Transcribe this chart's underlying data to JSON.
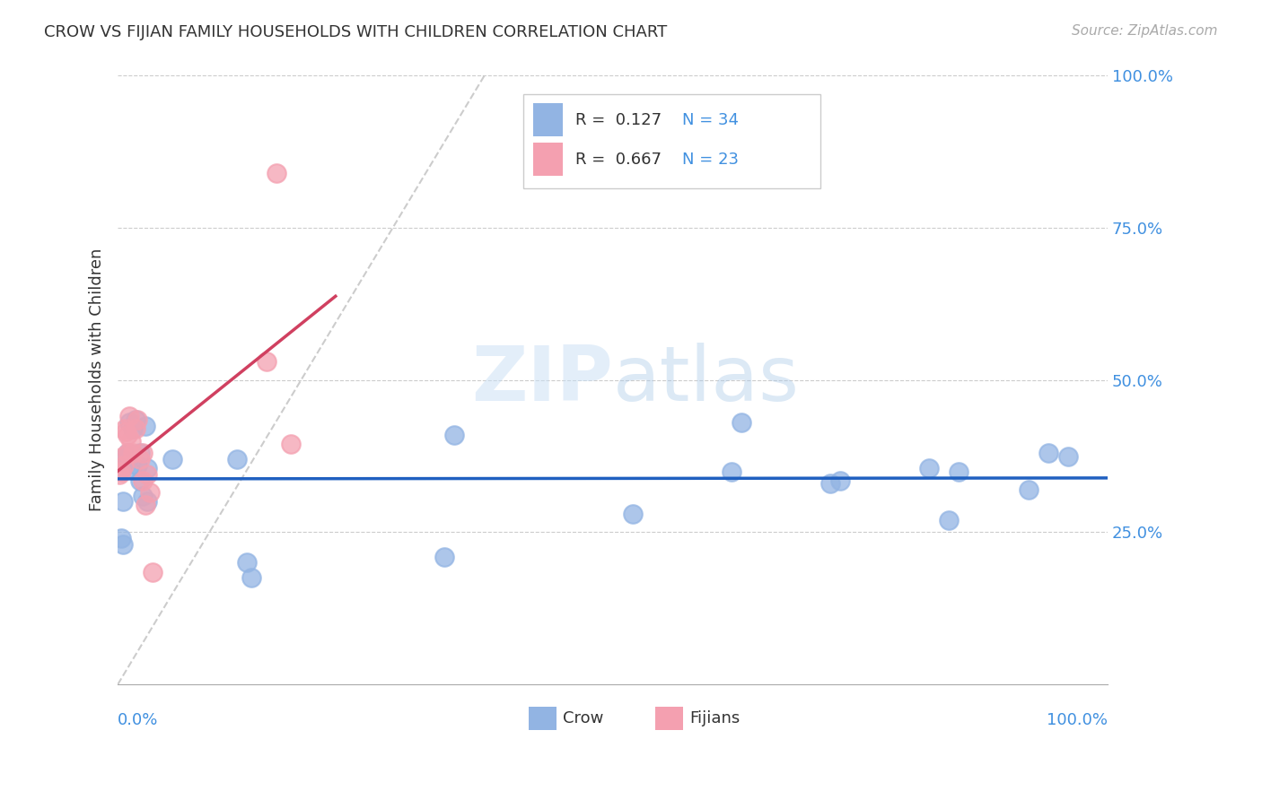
{
  "title": "CROW VS FIJIAN FAMILY HOUSEHOLDS WITH CHILDREN CORRELATION CHART",
  "source": "Source: ZipAtlas.com",
  "ylabel": "Family Households with Children",
  "ytick_labels": [
    "25.0%",
    "50.0%",
    "75.0%",
    "100.0%"
  ],
  "ytick_values": [
    0.25,
    0.5,
    0.75,
    1.0
  ],
  "legend_crow_r": "R =  0.127",
  "legend_crow_n": "N = 34",
  "legend_fijian_r": "R =  0.667",
  "legend_fijian_n": "N = 23",
  "crow_color": "#92b4e3",
  "fijian_color": "#f4a0b0",
  "crow_line_color": "#2060c0",
  "fijian_line_color": "#d04060",
  "diagonal_color": "#c0c0c0",
  "crow_x": [
    0.003,
    0.005,
    0.003,
    0.005,
    0.008,
    0.01,
    0.012,
    0.012,
    0.015,
    0.018,
    0.02,
    0.022,
    0.022,
    0.025,
    0.028,
    0.03,
    0.03,
    0.055,
    0.12,
    0.13,
    0.135,
    0.33,
    0.34,
    0.52,
    0.62,
    0.63,
    0.72,
    0.73,
    0.82,
    0.84,
    0.85,
    0.92,
    0.94,
    0.96
  ],
  "crow_y": [
    0.24,
    0.23,
    0.355,
    0.3,
    0.375,
    0.38,
    0.43,
    0.355,
    0.42,
    0.435,
    0.36,
    0.335,
    0.38,
    0.31,
    0.425,
    0.355,
    0.3,
    0.37,
    0.37,
    0.2,
    0.175,
    0.21,
    0.41,
    0.28,
    0.35,
    0.43,
    0.33,
    0.335,
    0.355,
    0.27,
    0.35,
    0.32,
    0.38,
    0.375
  ],
  "fijian_x": [
    0.002,
    0.003,
    0.005,
    0.006,
    0.007,
    0.008,
    0.01,
    0.01,
    0.012,
    0.013,
    0.015,
    0.018,
    0.02,
    0.022,
    0.025,
    0.025,
    0.028,
    0.03,
    0.032,
    0.035,
    0.15,
    0.16,
    0.175
  ],
  "fijian_y": [
    0.345,
    0.35,
    0.375,
    0.36,
    0.42,
    0.415,
    0.38,
    0.41,
    0.44,
    0.4,
    0.38,
    0.42,
    0.435,
    0.37,
    0.38,
    0.335,
    0.295,
    0.345,
    0.315,
    0.185,
    0.53,
    0.84,
    0.395
  ],
  "background_color": "#ffffff",
  "grid_color": "#cccccc",
  "blue_text_color": "#4090e0"
}
